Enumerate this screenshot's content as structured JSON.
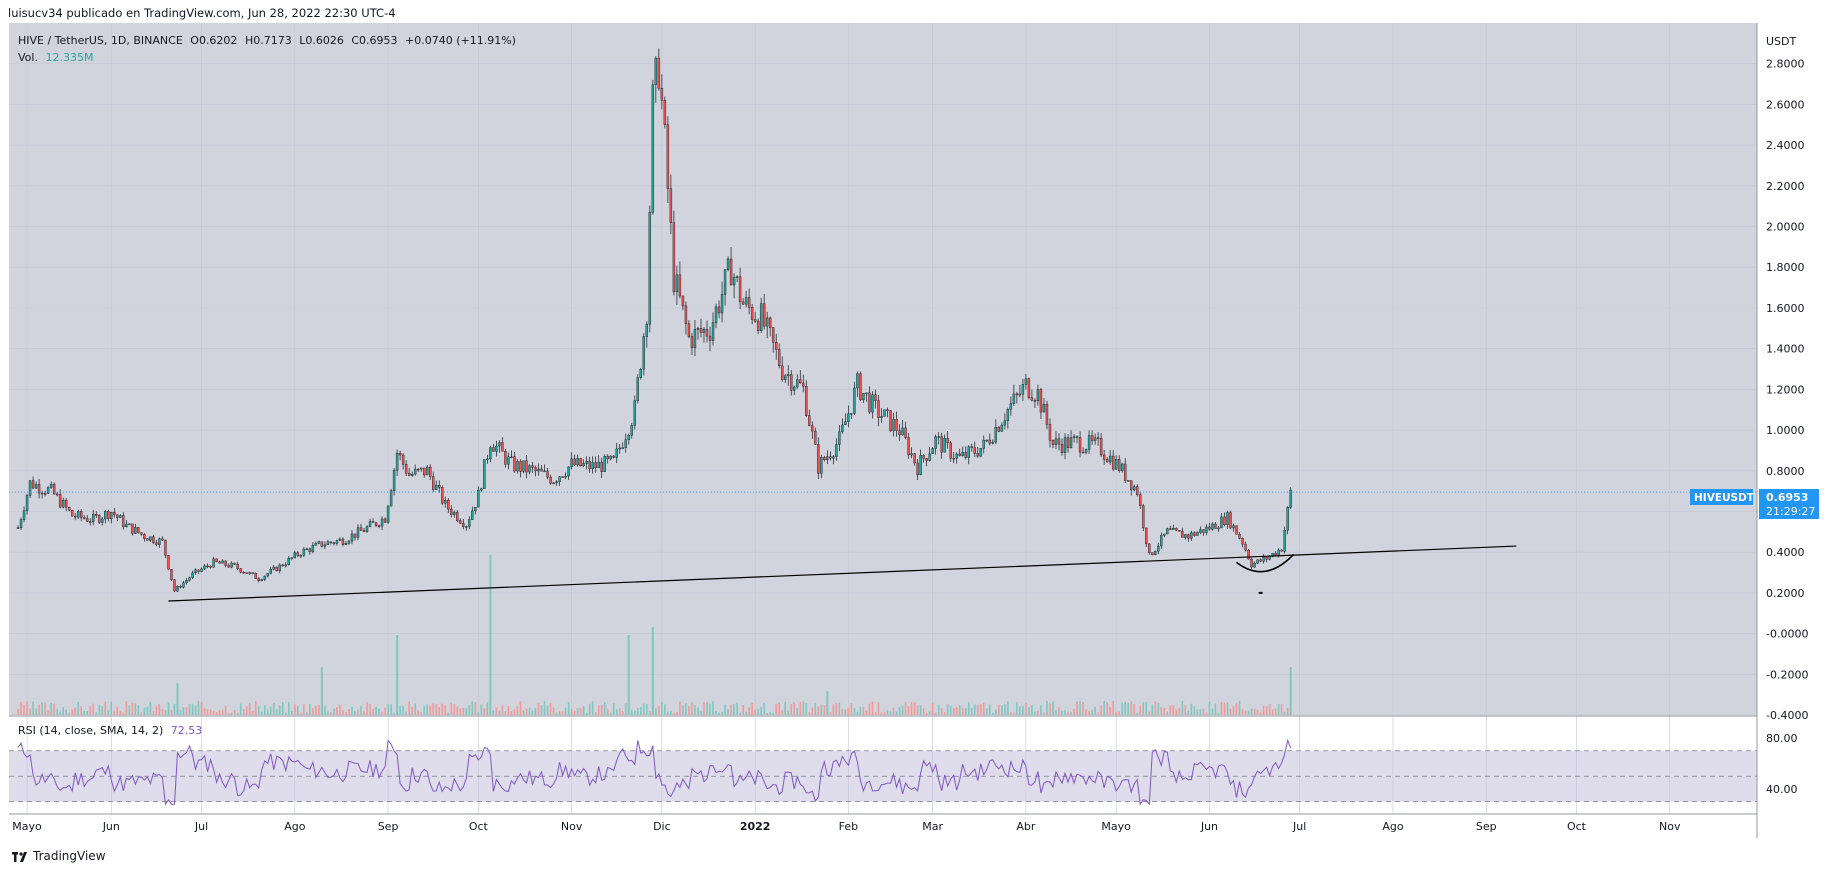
{
  "header": {
    "text": "luisucv34 publicado en TradingView.com, Jun 28, 2022 22:30 UTC-4"
  },
  "footer": {
    "brand": "TradingView"
  },
  "legend": {
    "symbol": "HIVE / TetherUS, 1D, BINANCE",
    "open": "O0.6202",
    "high": "H0.7173",
    "low": "L0.6026",
    "close": "C0.6953",
    "change": "+0.0740 (+11.91%)",
    "vol_label": "Vol.",
    "vol_value": "12.335M"
  },
  "rsi_legend": {
    "label": "RSI (14, close, SMA, 14, 2)",
    "value": "72.53"
  },
  "price_tag": {
    "symbol": "HIVEUSDT",
    "price": "0.6953",
    "countdown": "21:29:27"
  },
  "colors": {
    "up": "#26a69a",
    "down": "#ef5350",
    "background": "#d1d4dc",
    "rsi_line": "#7e57c2",
    "rsi_band": "#c5c0dc",
    "price_tag": "#2196f3"
  },
  "chart_data": [
    {
      "type": "candlestick",
      "title": "HIVE / TetherUS, 1D, BINANCE",
      "ylabel": "USDT",
      "ylim": [
        -0.4,
        3.0
      ],
      "y_ticks": [
        "2.8000",
        "2.6000",
        "2.4000",
        "2.2000",
        "2.0000",
        "1.8000",
        "1.6000",
        "1.4000",
        "1.2000",
        "1.0000",
        "0.8000",
        "0.6000",
        "0.4000",
        "0.2000",
        "-0.0000",
        "-0.2000",
        "-0.4000"
      ],
      "x_ticks": [
        "Mayo",
        "Jun",
        "Jul",
        "Ago",
        "Sep",
        "Oct",
        "Nov",
        "Dic",
        "2022",
        "Feb",
        "Mar",
        "Abr",
        "Mayo",
        "Jun",
        "Jul",
        "Ago",
        "Sep",
        "Oct",
        "Nov"
      ],
      "series": [
        {
          "name": "HIVE / TetherUS",
          "points": [
            {
              "date": "2021-05-01",
              "close": 0.52
            },
            {
              "date": "2021-05-05",
              "close": 0.74
            },
            {
              "date": "2021-05-12",
              "close": 0.7
            },
            {
              "date": "2021-05-19",
              "close": 0.58
            },
            {
              "date": "2021-05-26",
              "close": 0.56
            },
            {
              "date": "2021-06-01",
              "close": 0.6
            },
            {
              "date": "2021-06-06",
              "close": 0.53
            },
            {
              "date": "2021-06-12",
              "close": 0.48
            },
            {
              "date": "2021-06-18",
              "close": 0.45
            },
            {
              "date": "2021-06-22",
              "close": 0.21
            },
            {
              "date": "2021-06-28",
              "close": 0.29
            },
            {
              "date": "2021-07-05",
              "close": 0.35
            },
            {
              "date": "2021-07-12",
              "close": 0.33
            },
            {
              "date": "2021-07-20",
              "close": 0.27
            },
            {
              "date": "2021-07-27",
              "close": 0.33
            },
            {
              "date": "2021-08-03",
              "close": 0.4
            },
            {
              "date": "2021-08-10",
              "close": 0.44
            },
            {
              "date": "2021-08-17",
              "close": 0.46
            },
            {
              "date": "2021-08-24",
              "close": 0.51
            },
            {
              "date": "2021-08-31",
              "close": 0.57
            },
            {
              "date": "2021-09-04",
              "close": 0.89
            },
            {
              "date": "2021-09-08",
              "close": 0.78
            },
            {
              "date": "2021-09-14",
              "close": 0.8
            },
            {
              "date": "2021-09-20",
              "close": 0.63
            },
            {
              "date": "2021-09-27",
              "close": 0.54
            },
            {
              "date": "2021-10-01",
              "close": 0.68
            },
            {
              "date": "2021-10-05",
              "close": 0.95
            },
            {
              "date": "2021-10-12",
              "close": 0.83
            },
            {
              "date": "2021-10-19",
              "close": 0.8
            },
            {
              "date": "2021-10-26",
              "close": 0.76
            },
            {
              "date": "2021-11-01",
              "close": 0.83
            },
            {
              "date": "2021-11-08",
              "close": 0.82
            },
            {
              "date": "2021-11-15",
              "close": 0.84
            },
            {
              "date": "2021-11-22",
              "close": 1.1
            },
            {
              "date": "2021-11-26",
              "close": 1.6
            },
            {
              "date": "2021-11-28",
              "close": 2.6
            },
            {
              "date": "2021-11-30",
              "close": 2.8
            },
            {
              "date": "2021-12-02",
              "close": 2.4
            },
            {
              "date": "2021-12-05",
              "close": 1.75
            },
            {
              "date": "2021-12-10",
              "close": 1.45
            },
            {
              "date": "2021-12-17",
              "close": 1.5
            },
            {
              "date": "2021-12-24",
              "close": 1.8
            },
            {
              "date": "2021-12-28",
              "close": 1.62
            },
            {
              "date": "2022-01-03",
              "close": 1.55
            },
            {
              "date": "2022-01-10",
              "close": 1.3
            },
            {
              "date": "2022-01-17",
              "close": 1.2
            },
            {
              "date": "2022-01-22",
              "close": 0.82
            },
            {
              "date": "2022-01-29",
              "close": 0.95
            },
            {
              "date": "2022-02-04",
              "close": 1.22
            },
            {
              "date": "2022-02-10",
              "close": 1.1
            },
            {
              "date": "2022-02-18",
              "close": 1.0
            },
            {
              "date": "2022-02-24",
              "close": 0.82
            },
            {
              "date": "2022-03-02",
              "close": 0.95
            },
            {
              "date": "2022-03-10",
              "close": 0.86
            },
            {
              "date": "2022-03-18",
              "close": 0.92
            },
            {
              "date": "2022-03-25",
              "close": 1.08
            },
            {
              "date": "2022-04-01",
              "close": 1.22
            },
            {
              "date": "2022-04-05",
              "close": 1.18
            },
            {
              "date": "2022-04-10",
              "close": 0.93
            },
            {
              "date": "2022-04-18",
              "close": 0.94
            },
            {
              "date": "2022-04-25",
              "close": 0.92
            },
            {
              "date": "2022-05-02",
              "close": 0.82
            },
            {
              "date": "2022-05-08",
              "close": 0.7
            },
            {
              "date": "2022-05-12",
              "close": 0.38
            },
            {
              "date": "2022-05-18",
              "close": 0.5
            },
            {
              "date": "2022-05-25",
              "close": 0.48
            },
            {
              "date": "2022-06-01",
              "close": 0.52
            },
            {
              "date": "2022-06-07",
              "close": 0.57
            },
            {
              "date": "2022-06-12",
              "close": 0.45
            },
            {
              "date": "2022-06-15",
              "close": 0.34
            },
            {
              "date": "2022-06-20",
              "close": 0.37
            },
            {
              "date": "2022-06-25",
              "close": 0.42
            },
            {
              "date": "2022-06-28",
              "close": 0.6953
            }
          ]
        }
      ],
      "trendline": [
        {
          "date": "2021-06-20",
          "price": 0.16
        },
        {
          "date": "2022-09-11",
          "price": 0.43
        }
      ],
      "last_price": 0.6953
    },
    {
      "type": "bar",
      "title": "Vol.",
      "volume_spikes": [
        {
          "date": "2021-09-04",
          "level": 0.5
        },
        {
          "date": "2021-10-05",
          "level": 1.0
        },
        {
          "date": "2021-11-20",
          "level": 0.5
        },
        {
          "date": "2021-11-28",
          "level": 0.55
        },
        {
          "date": "2021-06-23",
          "level": 0.2
        },
        {
          "date": "2021-08-10",
          "level": 0.3
        },
        {
          "date": "2022-06-28",
          "level": 0.3
        },
        {
          "date": "2022-01-25",
          "level": 0.15
        }
      ]
    },
    {
      "type": "line",
      "title": "RSI (14, close, SMA, 14, 2)",
      "ylim": [
        25,
        95
      ],
      "y_ticks": [
        "80.00",
        "40.00"
      ],
      "band": [
        30,
        70
      ],
      "last_value": 72.53
    }
  ]
}
